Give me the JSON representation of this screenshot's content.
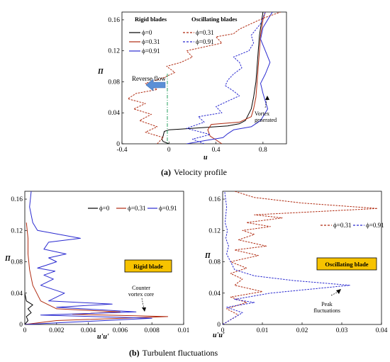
{
  "chart_data": [
    {
      "id": "a",
      "type": "line",
      "caption_letter": "(a)",
      "caption_text": "Velocity profile",
      "xlabel": "u",
      "ylabel": "Π",
      "xlim": [
        -0.4,
        1.0
      ],
      "ylim": [
        0,
        0.17
      ],
      "xticks": [
        {
          "v": -0.4,
          "t": "-0.4"
        },
        {
          "v": 0,
          "t": "0"
        },
        {
          "v": 0.4,
          "t": "0.4"
        },
        {
          "v": 0.8,
          "t": "0.8"
        }
      ],
      "yticks": [
        {
          "v": 0,
          "t": "0"
        },
        {
          "v": 0.04,
          "t": "0.04"
        },
        {
          "v": 0.08,
          "t": "0.08"
        },
        {
          "v": 0.12,
          "t": "0.12"
        },
        {
          "v": 0.16,
          "t": "0.16"
        }
      ],
      "legend_groups": [
        "Rigid blades",
        "Oscillating blades"
      ],
      "series": [
        {
          "name": "ϕ=0",
          "group": "Rigid blades",
          "color": "#000000",
          "dash": "solid",
          "x": [
            0.0,
            -0.05,
            -0.06,
            -0.05,
            -0.04,
            0.0,
            0.1,
            0.3,
            0.5,
            0.6,
            0.65,
            0.7,
            0.72,
            0.74,
            0.75,
            0.76,
            0.77,
            0.79,
            0.8
          ],
          "y": [
            0.0,
            0.003,
            0.006,
            0.01,
            0.016,
            0.018,
            0.019,
            0.021,
            0.023,
            0.026,
            0.03,
            0.045,
            0.06,
            0.08,
            0.1,
            0.12,
            0.14,
            0.16,
            0.17
          ]
        },
        {
          "name": "ϕ=0.31",
          "group": "Rigid blades",
          "color": "#b02a10",
          "dash": "solid",
          "x": [
            0.45,
            0.4,
            0.35,
            0.33,
            0.36,
            0.6,
            0.7,
            0.72,
            0.74,
            0.75,
            0.76,
            0.77,
            0.78,
            0.8,
            0.82
          ],
          "y": [
            0.0,
            0.005,
            0.01,
            0.018,
            0.025,
            0.028,
            0.035,
            0.045,
            0.06,
            0.08,
            0.1,
            0.12,
            0.14,
            0.16,
            0.17
          ]
        },
        {
          "name": "ϕ=0.91",
          "group": "Rigid blades",
          "color": "#2a2ad0",
          "dash": "solid",
          "x": [
            0.15,
            0.3,
            0.46,
            0.5,
            0.55,
            0.7,
            0.78,
            0.84,
            0.82,
            0.8,
            0.78,
            0.82,
            0.86,
            0.82,
            0.78,
            0.8,
            0.84,
            0.88
          ],
          "y": [
            0.0,
            0.004,
            0.008,
            0.013,
            0.018,
            0.022,
            0.03,
            0.045,
            0.055,
            0.065,
            0.078,
            0.09,
            0.105,
            0.12,
            0.135,
            0.15,
            0.16,
            0.17
          ]
        },
        {
          "name": "ϕ=0.31",
          "group": "Oscillating blades",
          "color": "#b02a10",
          "dash": "dashed",
          "x": [
            -0.1,
            -0.05,
            -0.2,
            -0.1,
            -0.25,
            -0.15,
            -0.3,
            -0.2,
            -0.35,
            -0.28,
            -0.1,
            -0.2,
            -0.05,
            0.05,
            -0.02,
            0.1,
            0.2,
            0.15,
            0.3,
            0.45,
            0.4,
            0.55,
            0.6,
            0.7,
            0.8,
            0.95
          ],
          "y": [
            0.0,
            0.008,
            0.015,
            0.022,
            0.03,
            0.038,
            0.045,
            0.052,
            0.058,
            0.065,
            0.07,
            0.078,
            0.085,
            0.092,
            0.1,
            0.105,
            0.112,
            0.12,
            0.125,
            0.13,
            0.138,
            0.142,
            0.148,
            0.155,
            0.162,
            0.17
          ]
        },
        {
          "name": "ϕ=0.91",
          "group": "Oscillating blades",
          "color": "#2a2ad0",
          "dash": "dashed",
          "x": [
            0.3,
            0.2,
            0.35,
            0.15,
            0.3,
            0.25,
            0.45,
            0.4,
            0.5,
            0.6,
            0.55,
            0.48,
            0.5,
            0.55,
            0.62,
            0.6,
            0.55,
            0.68,
            0.72,
            0.7,
            0.78,
            0.82
          ],
          "y": [
            0.0,
            0.006,
            0.012,
            0.02,
            0.028,
            0.035,
            0.04,
            0.048,
            0.055,
            0.062,
            0.068,
            0.075,
            0.082,
            0.09,
            0.098,
            0.105,
            0.112,
            0.12,
            0.13,
            0.14,
            0.155,
            0.17
          ]
        }
      ],
      "annotations": {
        "reverse_flow": "Reverse flow",
        "vortex_line1": "Vortex",
        "vortex_line2": "generated"
      }
    },
    {
      "id": "b1",
      "type": "line",
      "xlabel": "u'u'",
      "ylabel": "Π",
      "xlim": [
        0,
        0.01
      ],
      "ylim": [
        0,
        0.17
      ],
      "xticks": [
        {
          "v": 0,
          "t": "0"
        },
        {
          "v": 0.002,
          "t": "0.002"
        },
        {
          "v": 0.004,
          "t": "0.004"
        },
        {
          "v": 0.006,
          "t": "0.006"
        },
        {
          "v": 0.008,
          "t": "0.008"
        },
        {
          "v": 0.01,
          "t": "0.01"
        }
      ],
      "yticks": [
        {
          "v": 0,
          "t": "0"
        },
        {
          "v": 0.04,
          "t": "0.04"
        },
        {
          "v": 0.08,
          "t": "0.08"
        },
        {
          "v": 0.12,
          "t": "0.12"
        },
        {
          "v": 0.16,
          "t": "0.16"
        }
      ],
      "label_box": "Rigid blade",
      "series": [
        {
          "name": "ϕ=0",
          "color": "#000000",
          "dash": "solid",
          "x": [
            0.0,
            0.0002,
            0.0001,
            0.0004,
            0.0002,
            0.0005,
            0.0001,
            0.0
          ],
          "y": [
            0.0,
            0.005,
            0.01,
            0.015,
            0.02,
            0.025,
            0.03,
            0.04
          ]
        },
        {
          "name": "ϕ=0.31",
          "color": "#b02a10",
          "dash": "solid",
          "x": [
            0.0,
            0.002,
            0.009,
            0.003,
            0.006,
            0.002,
            0.001,
            0.0005,
            0.0003,
            0.0002,
            0.0002,
            0.0001
          ],
          "y": [
            0.0,
            0.005,
            0.01,
            0.013,
            0.016,
            0.02,
            0.03,
            0.05,
            0.07,
            0.09,
            0.11,
            0.13
          ]
        },
        {
          "name": "ϕ=0.91",
          "color": "#2a2ad0",
          "dash": "solid",
          "x": [
            0.0,
            0.008,
            0.001,
            0.007,
            0.002,
            0.0055,
            0.0015,
            0.0025,
            0.001,
            0.0018,
            0.0012,
            0.0019,
            0.0008,
            0.0014,
            0.002,
            0.0015,
            0.0026,
            0.0012,
            0.0015,
            0.0035,
            0.0008,
            0.0005,
            0.0003,
            0.0004
          ],
          "y": [
            0.0,
            0.008,
            0.012,
            0.016,
            0.022,
            0.026,
            0.03,
            0.04,
            0.05,
            0.058,
            0.063,
            0.068,
            0.072,
            0.076,
            0.08,
            0.085,
            0.09,
            0.096,
            0.105,
            0.11,
            0.12,
            0.13,
            0.15,
            0.17
          ]
        }
      ],
      "annotations": {
        "counter_line1": "Counter",
        "counter_line2": "vortex core"
      }
    },
    {
      "id": "b2",
      "type": "line",
      "caption_letter": "(b)",
      "caption_text": "Turbulent fluctuations",
      "xlabel": "u'u'",
      "ylabel": "Π",
      "xlim": [
        0,
        0.04
      ],
      "ylim": [
        0,
        0.17
      ],
      "xticks": [
        {
          "v": 0,
          "t": "0"
        },
        {
          "v": 0.01,
          "t": "0.01"
        },
        {
          "v": 0.02,
          "t": "0.02"
        },
        {
          "v": 0.03,
          "t": "0.03"
        },
        {
          "v": 0.04,
          "t": "0.04"
        }
      ],
      "yticks": [
        {
          "v": 0,
          "t": "0"
        },
        {
          "v": 0.04,
          "t": "0.04"
        },
        {
          "v": 0.08,
          "t": "0.08"
        },
        {
          "v": 0.12,
          "t": "0.12"
        },
        {
          "v": 0.16,
          "t": "0.16"
        }
      ],
      "label_box": "Oscillating blade",
      "series": [
        {
          "name": "ϕ=0.31",
          "color": "#b02a10",
          "dash": "dashed",
          "x": [
            0.0,
            0.004,
            0.001,
            0.006,
            0.002,
            0.01,
            0.003,
            0.005,
            0.002,
            0.006,
            0.002,
            0.009,
            0.003,
            0.011,
            0.004,
            0.008,
            0.005,
            0.012,
            0.006,
            0.015,
            0.008,
            0.039,
            0.02,
            0.008,
            0.003
          ],
          "y": [
            0.0,
            0.012,
            0.02,
            0.028,
            0.035,
            0.042,
            0.05,
            0.058,
            0.065,
            0.072,
            0.08,
            0.088,
            0.095,
            0.1,
            0.108,
            0.115,
            0.12,
            0.125,
            0.13,
            0.136,
            0.14,
            0.148,
            0.155,
            0.162,
            0.17
          ]
        },
        {
          "name": "ϕ=0.91",
          "color": "#2a2ad0",
          "dash": "dashed",
          "x": [
            0.0,
            0.005,
            0.001,
            0.008,
            0.003,
            0.012,
            0.032,
            0.018,
            0.008,
            0.003,
            0.002,
            0.001,
            0.0015,
            0.0008,
            0.0012,
            0.0006,
            0.001,
            0.0005
          ],
          "y": [
            0.0,
            0.015,
            0.022,
            0.028,
            0.032,
            0.04,
            0.05,
            0.056,
            0.062,
            0.07,
            0.08,
            0.09,
            0.1,
            0.11,
            0.12,
            0.13,
            0.15,
            0.17
          ]
        }
      ],
      "annotations": {
        "peak_line1": "Peak",
        "peak_line2": "fluctuations"
      }
    }
  ]
}
